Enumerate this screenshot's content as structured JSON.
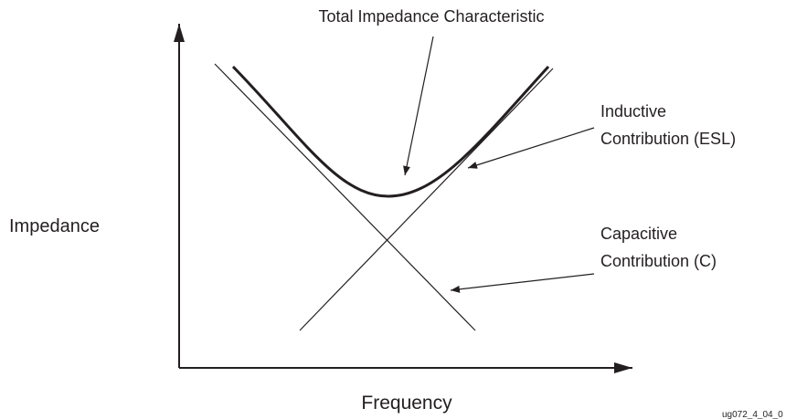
{
  "title": "Total Impedance Characteristic",
  "inductive": [
    "Inductive",
    "Contribution (ESL)"
  ],
  "capacitive": [
    "Capacitive",
    "Contribution (C)"
  ],
  "y_axis_label": "Impedance",
  "x_axis_label": "Frequency",
  "figure_id": "ug072_4_04_0"
}
